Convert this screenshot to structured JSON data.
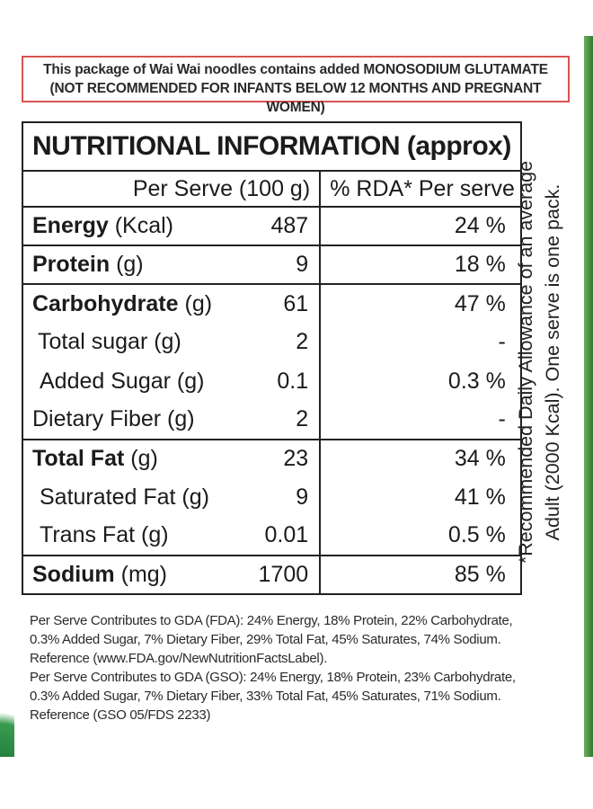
{
  "warning": {
    "line1": "This package of Wai Wai noodles contains added MONOSODIUM GLUTAMATE",
    "line2": "(NOT RECOMMENDED FOR INFANTS BELOW 12 MONTHS AND PREGNANT WOMEN)"
  },
  "table": {
    "title": "NUTRITIONAL INFORMATION (approx)",
    "col_per_serve": "Per Serve (100 g)",
    "col_rda": "% RDA* Per serve",
    "rows": [
      {
        "name": "Energy",
        "unit": "(Kcal)",
        "value": "487",
        "rda": "24 %"
      },
      {
        "name": "Protein",
        "unit": "(g)",
        "value": "9",
        "rda": "18 %"
      },
      {
        "name": "Carbohydrate",
        "unit": "(g)",
        "value": "61",
        "rda": "47 %"
      },
      {
        "name": "Total sugar (g)",
        "unit": "",
        "value": "2",
        "rda": "-"
      },
      {
        "name": "Added Sugar (g)",
        "unit": "",
        "value": "0.1",
        "rda": "0.3 %"
      },
      {
        "name": "Dietary Fiber (g)",
        "unit": "",
        "value": "2",
        "rda": "-"
      },
      {
        "name": "Total Fat",
        "unit": "(g)",
        "value": "23",
        "rda": "34 %"
      },
      {
        "name": "Saturated Fat (g)",
        "unit": "",
        "value": "9",
        "rda": "41 %"
      },
      {
        "name": "Trans Fat (g)",
        "unit": "",
        "value": "0.01",
        "rda": "0.5 %"
      },
      {
        "name": "Sodium",
        "unit": "(mg)",
        "value": "1700",
        "rda": "85 %"
      }
    ]
  },
  "side_note": {
    "line1": "*Recommended Daily Allowance of an average",
    "line2": "Adult (2000 Kcal). One serve is one pack."
  },
  "footnotes": [
    "Per Serve Contributes to GDA (FDA): 24% Energy, 18% Protein, 22% Carbohydrate,",
    "0.3% Added Sugar, 7% Dietary Fiber, 29% Total Fat, 45% Saturates, 74% Sodium.",
    "Reference (www.FDA.gov/NewNutritionFactsLabel).",
    "Per Serve Contributes to GDA (GSO): 24% Energy, 18% Protein, 23% Carbohydrate,",
    "0.3% Added Sugar, 7% Dietary Fiber, 33% Total Fat, 45% Saturates, 71% Sodium.",
    "Reference (GSO 05/FDS 2233)"
  ],
  "colors": {
    "warning_border": "#d9534f",
    "package_green": "#2f7a34"
  }
}
